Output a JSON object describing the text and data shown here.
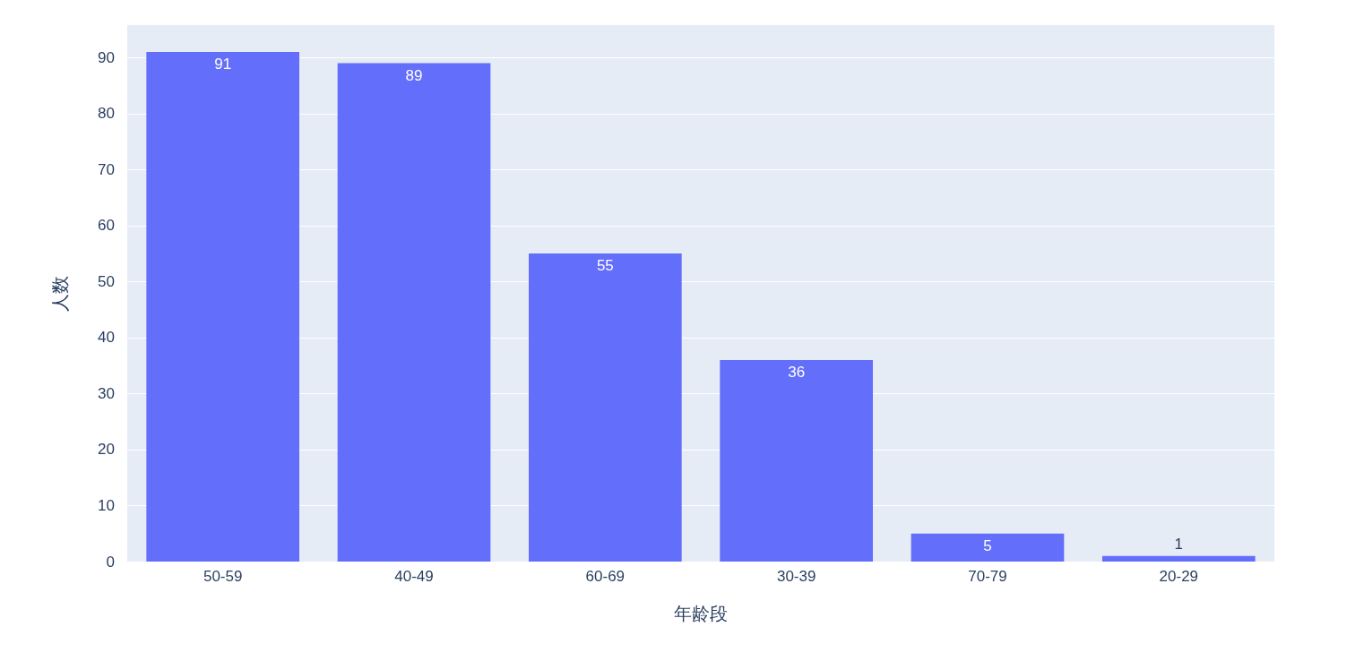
{
  "chart_data": {
    "type": "bar",
    "xlabel": "年龄段",
    "ylabel": "人数",
    "categories": [
      "50-59",
      "40-49",
      "60-69",
      "30-39",
      "70-79",
      "20-29"
    ],
    "values": [
      91,
      89,
      55,
      36,
      5,
      1
    ],
    "color": "#636efa",
    "ylim": [
      0,
      95.8
    ],
    "yticks": [
      0,
      10,
      20,
      30,
      40,
      50,
      60,
      70,
      80,
      90
    ],
    "grid": "y",
    "data_labels": true
  }
}
